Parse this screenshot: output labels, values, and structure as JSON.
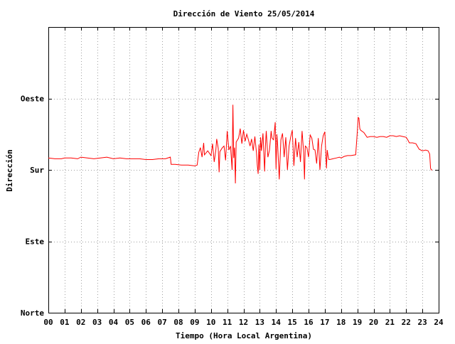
{
  "chart_data": {
    "type": "line",
    "title": "Dirección de Viento 25/05/2014",
    "xlabel": "Tiempo (Hora Local Argentina)",
    "ylabel": "Dirección",
    "xlim": [
      0,
      24
    ],
    "ylim": [
      0,
      360
    ],
    "x_ticks": [
      {
        "value": 0,
        "label": "00"
      },
      {
        "value": 1,
        "label": "01"
      },
      {
        "value": 2,
        "label": "02"
      },
      {
        "value": 3,
        "label": "03"
      },
      {
        "value": 4,
        "label": "04"
      },
      {
        "value": 5,
        "label": "05"
      },
      {
        "value": 6,
        "label": "06"
      },
      {
        "value": 7,
        "label": "07"
      },
      {
        "value": 8,
        "label": "08"
      },
      {
        "value": 9,
        "label": "09"
      },
      {
        "value": 10,
        "label": "10"
      },
      {
        "value": 11,
        "label": "11"
      },
      {
        "value": 12,
        "label": "12"
      },
      {
        "value": 13,
        "label": "13"
      },
      {
        "value": 14,
        "label": "14"
      },
      {
        "value": 15,
        "label": "15"
      },
      {
        "value": 16,
        "label": "16"
      },
      {
        "value": 17,
        "label": "17"
      },
      {
        "value": 18,
        "label": "18"
      },
      {
        "value": 19,
        "label": "19"
      },
      {
        "value": 20,
        "label": "20"
      },
      {
        "value": 21,
        "label": "21"
      },
      {
        "value": 22,
        "label": "22"
      },
      {
        "value": 23,
        "label": "23"
      },
      {
        "value": 24,
        "label": "24"
      }
    ],
    "y_ticks": [
      {
        "value": 0,
        "label": "Norte"
      },
      {
        "value": 90,
        "label": "Este"
      },
      {
        "value": 180,
        "label": "Sur"
      },
      {
        "value": 270,
        "label": "Oeste"
      }
    ],
    "grid": true,
    "legend": "none",
    "series": [
      {
        "color": "#ff0000",
        "points": [
          [
            0.0,
            195
          ],
          [
            0.4,
            194
          ],
          [
            0.8,
            194
          ],
          [
            1.0,
            195
          ],
          [
            1.4,
            195
          ],
          [
            1.8,
            194
          ],
          [
            2.0,
            196
          ],
          [
            2.4,
            195
          ],
          [
            2.8,
            194
          ],
          [
            3.2,
            195
          ],
          [
            3.6,
            196
          ],
          [
            4.0,
            194
          ],
          [
            4.4,
            195
          ],
          [
            4.8,
            194
          ],
          [
            5.2,
            194
          ],
          [
            5.6,
            194
          ],
          [
            6.0,
            193
          ],
          [
            6.4,
            193
          ],
          [
            6.8,
            194
          ],
          [
            7.2,
            194
          ],
          [
            7.5,
            196
          ],
          [
            7.55,
            187
          ],
          [
            7.8,
            187
          ],
          [
            8.2,
            186
          ],
          [
            8.6,
            186
          ],
          [
            9.0,
            185
          ],
          [
            9.15,
            186
          ],
          [
            9.25,
            202
          ],
          [
            9.35,
            208
          ],
          [
            9.45,
            196
          ],
          [
            9.55,
            214
          ],
          [
            9.6,
            199
          ],
          [
            9.8,
            204
          ],
          [
            10.0,
            198
          ],
          [
            10.1,
            213
          ],
          [
            10.2,
            190
          ],
          [
            10.3,
            205
          ],
          [
            10.35,
            219
          ],
          [
            10.45,
            207
          ],
          [
            10.5,
            177
          ],
          [
            10.55,
            203
          ],
          [
            10.7,
            208
          ],
          [
            10.8,
            210
          ],
          [
            10.9,
            192
          ],
          [
            11.0,
            229
          ],
          [
            11.1,
            205
          ],
          [
            11.2,
            210
          ],
          [
            11.3,
            180
          ],
          [
            11.35,
            262
          ],
          [
            11.4,
            195
          ],
          [
            11.45,
            208
          ],
          [
            11.5,
            163
          ],
          [
            11.55,
            215
          ],
          [
            11.7,
            220
          ],
          [
            11.8,
            232
          ],
          [
            11.9,
            213
          ],
          [
            12.0,
            230
          ],
          [
            12.1,
            216
          ],
          [
            12.2,
            225
          ],
          [
            12.3,
            218
          ],
          [
            12.4,
            210
          ],
          [
            12.5,
            219
          ],
          [
            12.6,
            204
          ],
          [
            12.7,
            222
          ],
          [
            12.8,
            201
          ],
          [
            12.85,
            186
          ],
          [
            12.9,
            175
          ],
          [
            12.95,
            212
          ],
          [
            13.0,
            180
          ],
          [
            13.05,
            221
          ],
          [
            13.1,
            204
          ],
          [
            13.2,
            226
          ],
          [
            13.3,
            178
          ],
          [
            13.35,
            211
          ],
          [
            13.4,
            229
          ],
          [
            13.5,
            196
          ],
          [
            13.6,
            205
          ],
          [
            13.7,
            229
          ],
          [
            13.75,
            220
          ],
          [
            13.85,
            218
          ],
          [
            13.95,
            240
          ],
          [
            14.0,
            181
          ],
          [
            14.05,
            225
          ],
          [
            14.1,
            212
          ],
          [
            14.2,
            168
          ],
          [
            14.3,
            218
          ],
          [
            14.4,
            226
          ],
          [
            14.5,
            196
          ],
          [
            14.6,
            221
          ],
          [
            14.7,
            180
          ],
          [
            14.8,
            210
          ],
          [
            14.9,
            221
          ],
          [
            15.0,
            230
          ],
          [
            15.1,
            185
          ],
          [
            15.2,
            220
          ],
          [
            15.3,
            196
          ],
          [
            15.4,
            215
          ],
          [
            15.5,
            190
          ],
          [
            15.6,
            229
          ],
          [
            15.7,
            202
          ],
          [
            15.75,
            168
          ],
          [
            15.8,
            210
          ],
          [
            15.9,
            208
          ],
          [
            16.0,
            196
          ],
          [
            16.1,
            224
          ],
          [
            16.2,
            220
          ],
          [
            16.3,
            206
          ],
          [
            16.4,
            205
          ],
          [
            16.5,
            188
          ],
          [
            16.6,
            220
          ],
          [
            16.7,
            180
          ],
          [
            16.8,
            210
          ],
          [
            16.9,
            223
          ],
          [
            17.0,
            228
          ],
          [
            17.1,
            182
          ],
          [
            17.15,
            205
          ],
          [
            17.2,
            198
          ],
          [
            17.25,
            193
          ],
          [
            17.3,
            193
          ],
          [
            17.5,
            194
          ],
          [
            17.7,
            195
          ],
          [
            17.9,
            196
          ],
          [
            18.0,
            195
          ],
          [
            18.2,
            197
          ],
          [
            18.4,
            198
          ],
          [
            18.6,
            198
          ],
          [
            18.9,
            199
          ],
          [
            19.0,
            228
          ],
          [
            19.05,
            246
          ],
          [
            19.1,
            245
          ],
          [
            19.15,
            232
          ],
          [
            19.2,
            230
          ],
          [
            19.4,
            227
          ],
          [
            19.6,
            221
          ],
          [
            19.8,
            222
          ],
          [
            20.0,
            222
          ],
          [
            20.2,
            221
          ],
          [
            20.4,
            222
          ],
          [
            20.6,
            222
          ],
          [
            20.8,
            221
          ],
          [
            21.0,
            223
          ],
          [
            21.2,
            223
          ],
          [
            21.4,
            222
          ],
          [
            21.6,
            223
          ],
          [
            21.8,
            222
          ],
          [
            22.0,
            221
          ],
          [
            22.1,
            218
          ],
          [
            22.2,
            214
          ],
          [
            22.4,
            214
          ],
          [
            22.6,
            213
          ],
          [
            22.8,
            206
          ],
          [
            23.0,
            204
          ],
          [
            23.2,
            205
          ],
          [
            23.35,
            204
          ],
          [
            23.45,
            200
          ],
          [
            23.5,
            182
          ],
          [
            23.55,
            180
          ],
          [
            23.6,
            180
          ]
        ]
      }
    ]
  }
}
